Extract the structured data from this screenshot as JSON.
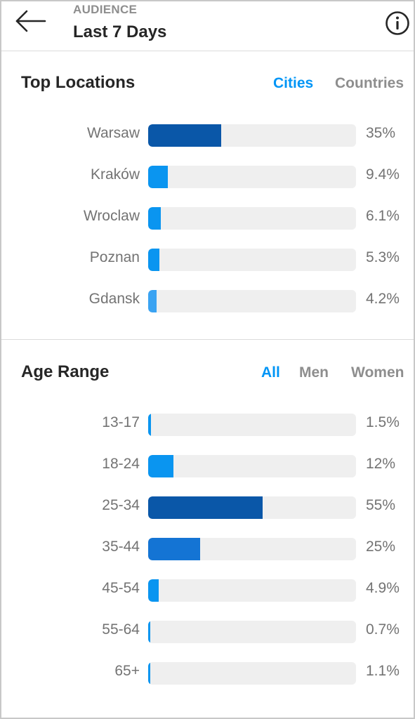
{
  "header": {
    "eyebrow": "AUDIENCE",
    "title": "Last 7 Days",
    "back_icon": "back-arrow-icon",
    "info_icon": "info-icon"
  },
  "colors": {
    "accent": "#0095f6",
    "track": "#efefef",
    "bar_dark": "#0a57a8",
    "bar_mid": "#1474d4",
    "bar_light": "#0a95f0",
    "bar_pale": "#3aa3f2"
  },
  "locations": {
    "title": "Top Locations",
    "tabs": [
      {
        "label": "Cities",
        "active": true
      },
      {
        "label": "Countries",
        "active": false
      }
    ],
    "rows": [
      {
        "label": "Warsaw",
        "value": "35%",
        "fraction": 0.35,
        "color": "#0a57a8"
      },
      {
        "label": "Kraków",
        "value": "9.4%",
        "fraction": 0.094,
        "color": "#0a95f0"
      },
      {
        "label": "Wroclaw",
        "value": "6.1%",
        "fraction": 0.061,
        "color": "#0a95f0"
      },
      {
        "label": "Poznan",
        "value": "5.3%",
        "fraction": 0.053,
        "color": "#0a95f0"
      },
      {
        "label": "Gdansk",
        "value": "4.2%",
        "fraction": 0.042,
        "color": "#3aa3f2"
      }
    ]
  },
  "age": {
    "title": "Age Range",
    "tabs": [
      {
        "label": "All",
        "active": true
      },
      {
        "label": "Men",
        "active": false
      },
      {
        "label": "Women",
        "active": false
      }
    ],
    "rows": [
      {
        "label": "13-17",
        "value": "1.5%",
        "fraction": 0.015,
        "color": "#0a95f0"
      },
      {
        "label": "18-24",
        "value": "12%",
        "fraction": 0.12,
        "color": "#0a95f0"
      },
      {
        "label": "25-34",
        "value": "55%",
        "fraction": 0.55,
        "color": "#0a57a8"
      },
      {
        "label": "35-44",
        "value": "25%",
        "fraction": 0.25,
        "color": "#1474d4"
      },
      {
        "label": "45-54",
        "value": "4.9%",
        "fraction": 0.049,
        "color": "#0a95f0"
      },
      {
        "label": "55-64",
        "value": "0.7%",
        "fraction": 0.007,
        "color": "#0a95f0"
      },
      {
        "label": "65+",
        "value": "1.1%",
        "fraction": 0.011,
        "color": "#0a95f0"
      }
    ]
  }
}
